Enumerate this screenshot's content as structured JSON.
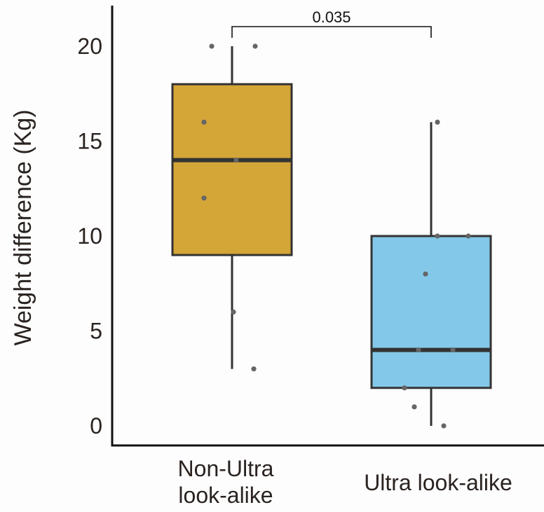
{
  "chart_data": {
    "type": "box",
    "ylabel": "Weight difference (Kg)",
    "ylim": [
      -0.8,
      22
    ],
    "yticks": [
      0,
      5,
      10,
      15,
      20
    ],
    "grid": false,
    "categories": [
      {
        "label_lines": [
          "Non-Ultra",
          "look-alike"
        ],
        "color": "#D4A537",
        "whisker_low": 3,
        "q1": 9,
        "median": 14,
        "q3": 18,
        "whisker_high": 20,
        "points": [
          20,
          20,
          16,
          14,
          12,
          6,
          3
        ]
      },
      {
        "label_lines": [
          "Ultra look-alike"
        ],
        "color": "#83C8E8",
        "whisker_low": 0,
        "q1": 2,
        "median": 4,
        "q3": 10,
        "whisker_high": 16,
        "points": [
          16,
          10,
          10,
          8,
          4,
          4,
          2,
          1,
          0
        ]
      }
    ],
    "annotations": [
      {
        "type": "significance_bracket",
        "from": 0,
        "to": 1,
        "label": "0.035"
      }
    ],
    "colors": {
      "box_stroke": "#333333",
      "point": "#666666",
      "axis": "#111111"
    }
  }
}
